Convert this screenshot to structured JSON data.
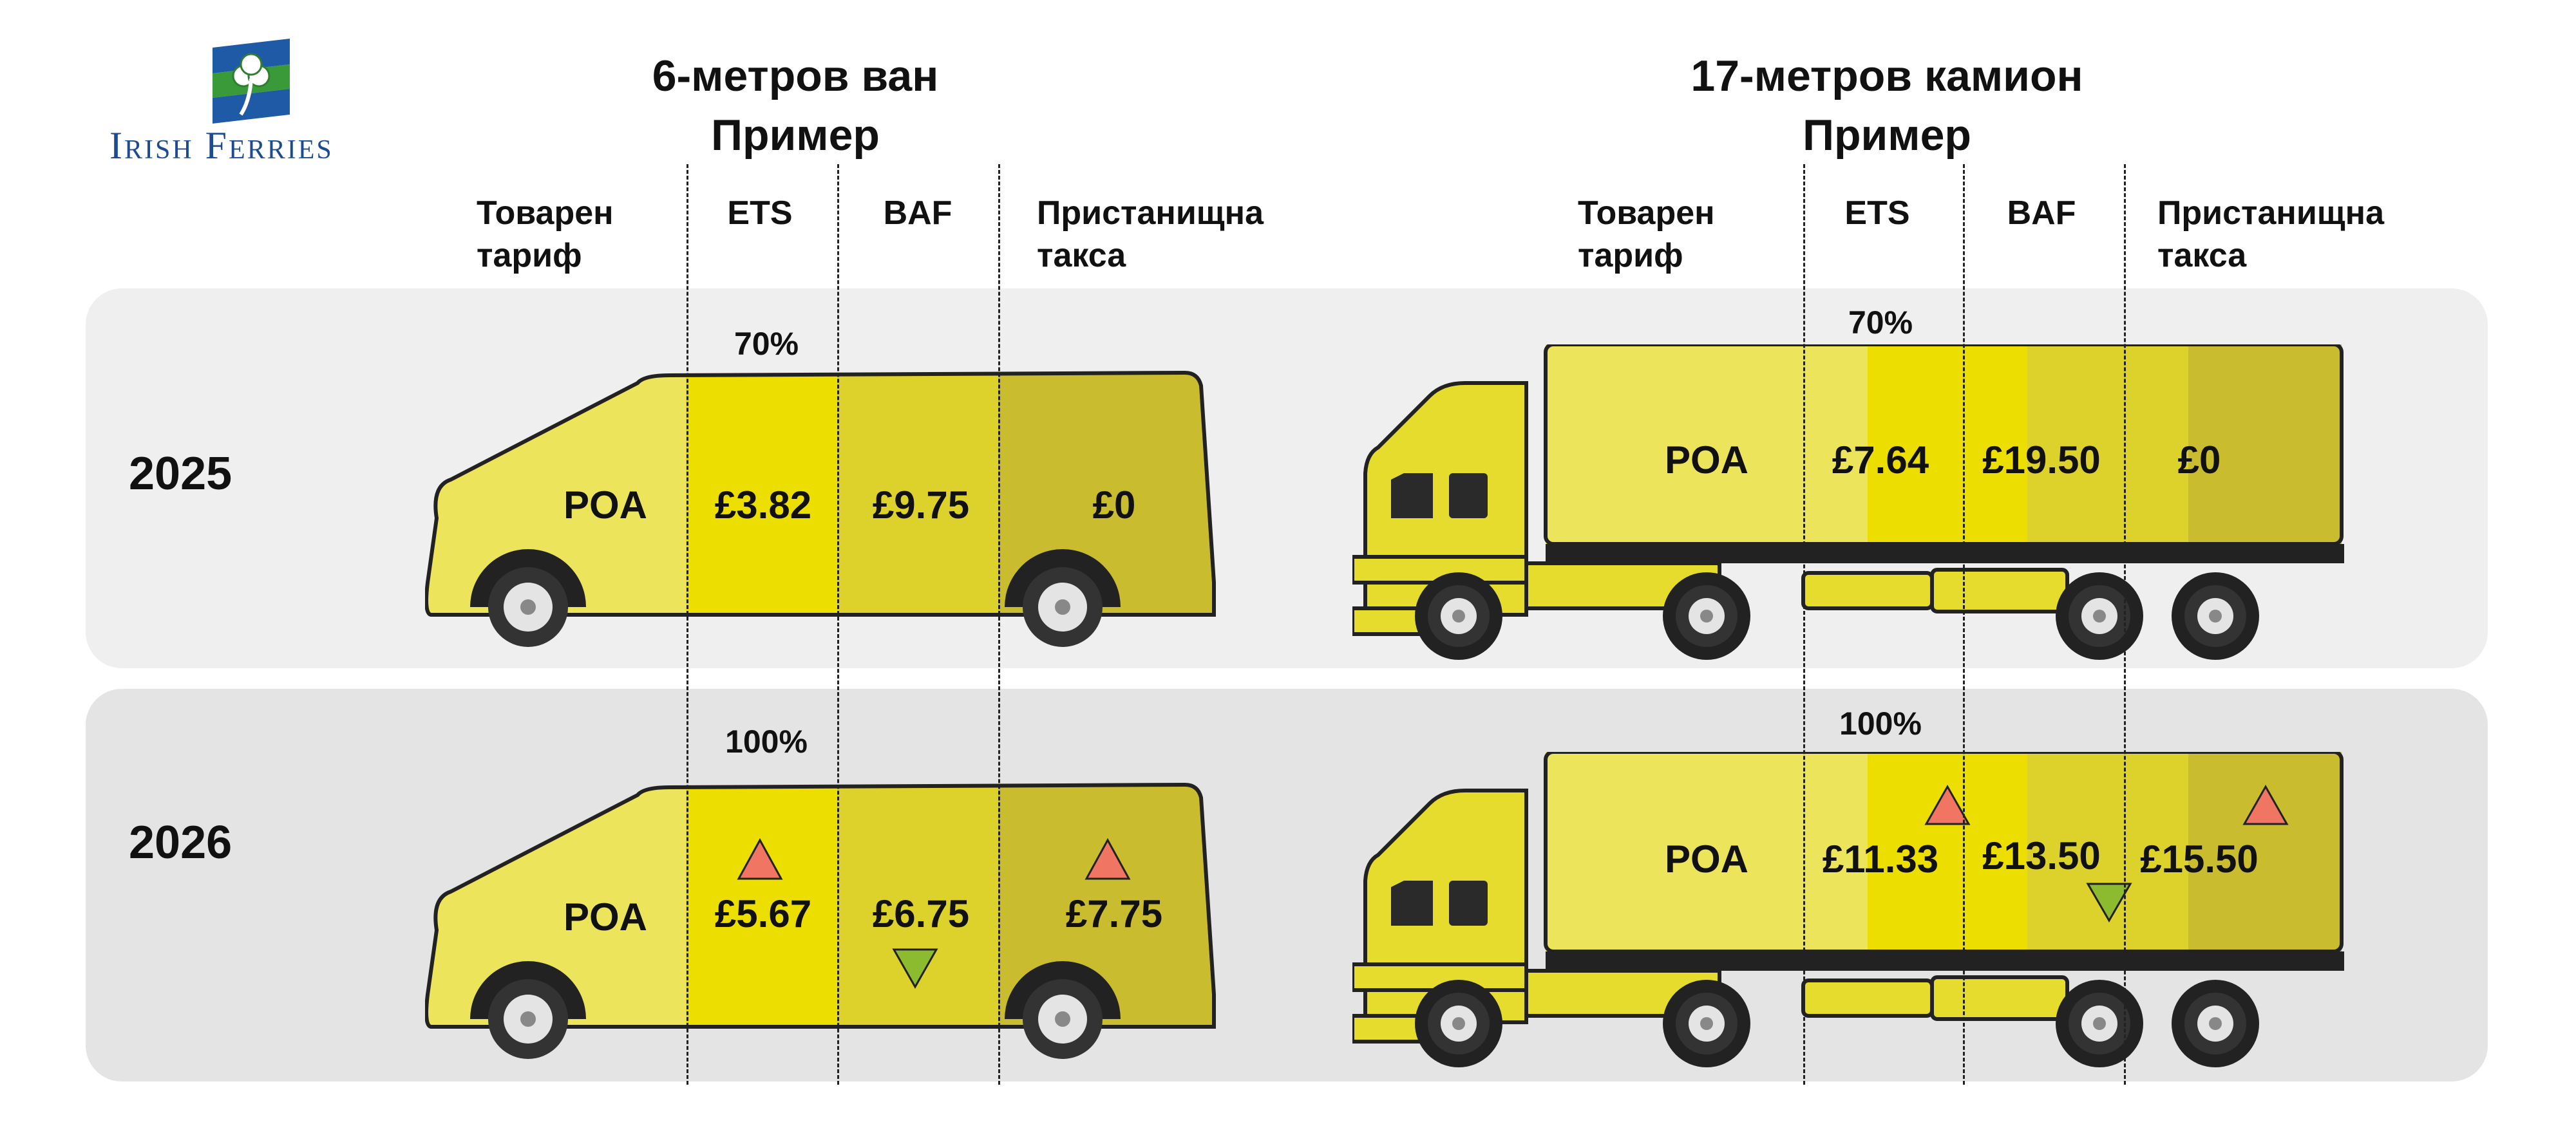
{
  "brand": {
    "name": "Irish Ferries",
    "icon": "shamrock-flag-icon"
  },
  "colors": {
    "band_2025": "#efefef",
    "band_2026": "#e4e4e4",
    "tariff": "#ece45a",
    "ets": "#ecdf00",
    "baf": "#ddd12c",
    "port": "#c9bd2f",
    "up": "#f07563",
    "down": "#8dbb2f"
  },
  "van": {
    "title_line1": "6-метров ван",
    "title_line2": "Пример",
    "columns": {
      "tariff": "Товарен тариф",
      "ets": "ETS",
      "baf": "BAF",
      "port": "Пристанищна такса"
    }
  },
  "truck": {
    "title_line1": "17-метров камион",
    "title_line2": "Пример",
    "columns": {
      "tariff": "Товарен тариф",
      "ets": "ETS",
      "baf": "BAF",
      "port": "Пристанищна такса"
    }
  },
  "rows": [
    {
      "year": "2025",
      "van": {
        "ets_pct": "70%",
        "tariff": "POA",
        "ets": "£3.82",
        "baf": "£9.75",
        "port": "£0",
        "ets_trend": "none",
        "baf_trend": "none",
        "port_trend": "none"
      },
      "truck": {
        "ets_pct": "70%",
        "tariff": "POA",
        "ets": "£7.64",
        "baf": "£19.50",
        "port": "£0",
        "ets_trend": "none",
        "baf_trend": "none",
        "port_trend": "none"
      }
    },
    {
      "year": "2026",
      "van": {
        "ets_pct": "100%",
        "tariff": "POA",
        "ets": "£5.67",
        "baf": "£6.75",
        "port": "£7.75",
        "ets_trend": "up",
        "baf_trend": "down",
        "port_trend": "up"
      },
      "truck": {
        "ets_pct": "100%",
        "tariff": "POA",
        "ets": "£11.33",
        "baf": "£13.50",
        "port": "£15.50",
        "ets_trend": "up",
        "baf_trend": "down",
        "port_trend": "up"
      }
    }
  ]
}
